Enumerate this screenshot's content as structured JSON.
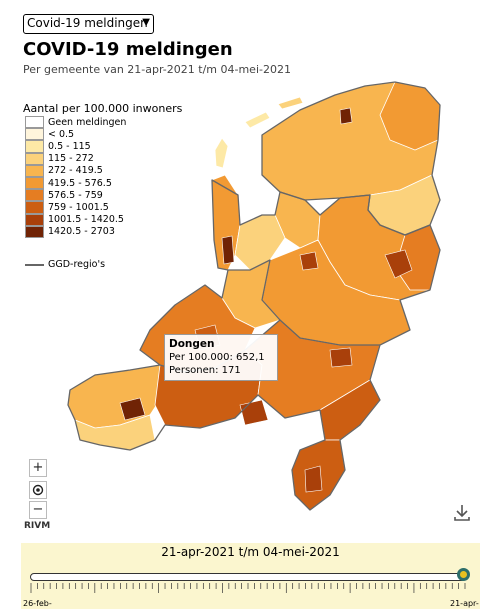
{
  "selector": {
    "value": "Covid-19 meldingen"
  },
  "header": {
    "title": "COVID-19 meldingen",
    "subtitle": "Per gemeente van 21-apr-2021 t/m 04-mei-2021"
  },
  "legend": {
    "title": "Aantal per 100.000 inwoners",
    "items": [
      {
        "label": "Geen meldingen",
        "color": "#ffffff"
      },
      {
        "label": "< 0.5",
        "color": "#fff5dc"
      },
      {
        "label": "0.5 - 115",
        "color": "#fde9a6"
      },
      {
        "label": "115 - 272",
        "color": "#fbd27c"
      },
      {
        "label": "272 - 419.5",
        "color": "#f8b54f"
      },
      {
        "label": "419.5 - 576.5",
        "color": "#f29a33"
      },
      {
        "label": "576.5 - 759",
        "color": "#e57d22"
      },
      {
        "label": "759 - 1001.5",
        "color": "#cc5e12"
      },
      {
        "label": "1001.5 - 1420.5",
        "color": "#a9400a"
      },
      {
        "label": "1420.5 - 2703",
        "color": "#702305"
      }
    ],
    "region_line_label": "GGD-regio's"
  },
  "tooltip": {
    "name": "Dongen",
    "per100k_label": "Per 100.000:",
    "per100k_value": "652,1",
    "persons_label": "Personen:",
    "persons_value": "171"
  },
  "map_controls": {
    "zoom_in": "+",
    "locate_icon": "target-icon",
    "zoom_out": "−",
    "attribution": "RIVM",
    "download_icon": "download-icon"
  },
  "timeline": {
    "range_label": "21-apr-2021 t/m 04-mei-2021",
    "start_label": "26-feb-",
    "end_label": "21-apr-",
    "position": 1.0
  }
}
